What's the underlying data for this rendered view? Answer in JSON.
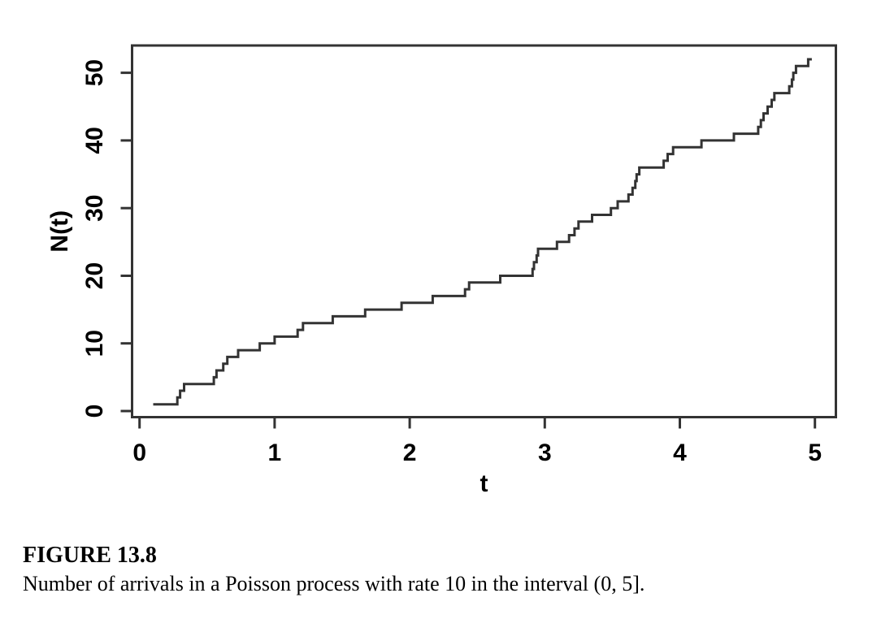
{
  "figure": {
    "label": "FIGURE 13.8",
    "caption": "Number of arrivals in a Poisson process with rate 10 in the interval (0, 5]."
  },
  "chart_data": {
    "type": "line",
    "step_style": "post",
    "title": "",
    "xlabel": "t",
    "ylabel": "N(t)",
    "x_ticks": [
      0,
      1,
      2,
      3,
      4,
      5
    ],
    "y_ticks": [
      0,
      10,
      20,
      30,
      40,
      50
    ],
    "xlim": [
      -0.06,
      5.16
    ],
    "ylim": [
      -1,
      54
    ],
    "grid": false,
    "legend": null,
    "line_color": "#333333",
    "text_color": "#000000",
    "background": "#ffffff",
    "arrival_times": [
      0.11,
      0.28,
      0.3,
      0.33,
      0.55,
      0.57,
      0.62,
      0.65,
      0.73,
      0.89,
      1.0,
      1.17,
      1.21,
      1.43,
      1.67,
      1.94,
      2.17,
      2.41,
      2.44,
      2.67,
      2.91,
      2.92,
      2.94,
      2.95,
      3.09,
      3.18,
      3.22,
      3.25,
      3.35,
      3.49,
      3.54,
      3.62,
      3.65,
      3.67,
      3.68,
      3.7,
      3.88,
      3.91,
      3.95,
      4.16,
      4.4,
      4.58,
      4.6,
      4.62,
      4.65,
      4.68,
      4.7,
      4.81,
      4.83,
      4.84,
      4.86,
      4.95
    ],
    "counts": [
      1,
      2,
      3,
      4,
      5,
      6,
      7,
      8,
      9,
      10,
      11,
      12,
      13,
      14,
      15,
      16,
      17,
      18,
      19,
      20,
      21,
      22,
      23,
      24,
      25,
      26,
      27,
      28,
      29,
      30,
      31,
      32,
      33,
      34,
      35,
      36,
      37,
      38,
      39,
      40,
      41,
      42,
      43,
      44,
      45,
      46,
      47,
      48,
      49,
      50,
      51,
      52
    ]
  }
}
